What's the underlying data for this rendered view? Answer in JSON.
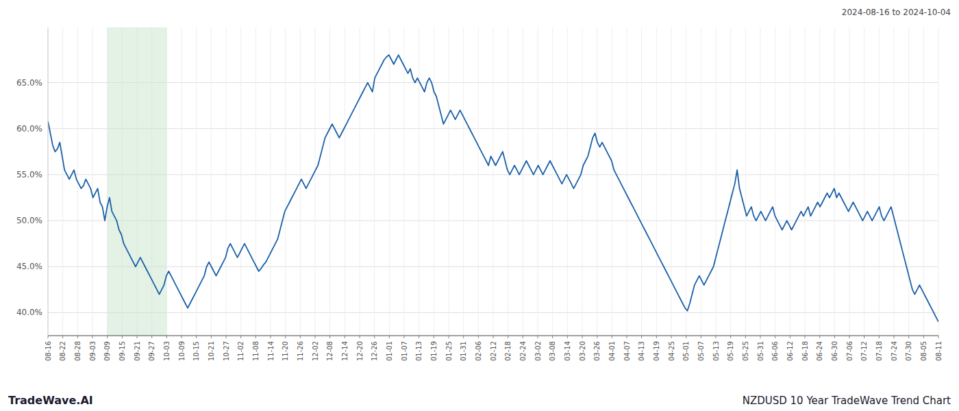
{
  "chart_data": {
    "type": "line",
    "title": "NZDUSD 10 Year TradeWave Trend Chart",
    "subtitle": "2024-08-16 to 2024-10-04",
    "annotations": [
      "TradeWave.AI"
    ],
    "color": "#1a5fa8",
    "grid": true,
    "shade": {
      "start": "09-09",
      "end": "10-03",
      "color": "#c8e6c9"
    },
    "ylim": [
      37.5,
      71.0
    ],
    "yticks": [
      {
        "value": 40.0,
        "label": "40.0%"
      },
      {
        "value": 45.0,
        "label": "45.0%"
      },
      {
        "value": 50.0,
        "label": "50.0%"
      },
      {
        "value": 55.0,
        "label": "55.0%"
      },
      {
        "value": 60.0,
        "label": "60.0%"
      },
      {
        "value": 65.0,
        "label": "65.0%"
      }
    ],
    "xlim": [
      0,
      376
    ],
    "xticks": [
      {
        "value": 0,
        "label": "08-16"
      },
      {
        "value": 6.266666666666667,
        "label": "08-22"
      },
      {
        "value": 12.533333333333333,
        "label": "08-28"
      },
      {
        "value": 18.8,
        "label": "09-03"
      },
      {
        "value": 25.066666666666666,
        "label": "09-09"
      },
      {
        "value": 31.333333333333332,
        "label": "09-15"
      },
      {
        "value": 37.6,
        "label": "09-21"
      },
      {
        "value": 43.86666666666667,
        "label": "09-27"
      },
      {
        "value": 50.13333333333333,
        "label": "10-03"
      },
      {
        "value": 56.4,
        "label": "10-09"
      },
      {
        "value": 62.666666666666664,
        "label": "10-15"
      },
      {
        "value": 68.93333333333334,
        "label": "10-21"
      },
      {
        "value": 75.2,
        "label": "10-27"
      },
      {
        "value": 81.46666666666667,
        "label": "11-02"
      },
      {
        "value": 87.73333333333333,
        "label": "11-08"
      },
      {
        "value": 94,
        "label": "11-14"
      },
      {
        "value": 100.26666666666667,
        "label": "11-20"
      },
      {
        "value": 106.53333333333333,
        "label": "11-26"
      },
      {
        "value": 112.8,
        "label": "12-02"
      },
      {
        "value": 119.06666666666666,
        "label": "12-08"
      },
      {
        "value": 125.33333333333333,
        "label": "12-14"
      },
      {
        "value": 131.6,
        "label": "12-20"
      },
      {
        "value": 137.86666666666667,
        "label": "12-26"
      },
      {
        "value": 144.13333333333333,
        "label": "01-01"
      },
      {
        "value": 150.4,
        "label": "01-07"
      },
      {
        "value": 156.66666666666666,
        "label": "01-13"
      },
      {
        "value": 162.93333333333334,
        "label": "01-19"
      },
      {
        "value": 169.2,
        "label": "01-25"
      },
      {
        "value": 175.46666666666667,
        "label": "01-31"
      },
      {
        "value": 181.73333333333332,
        "label": "02-06"
      },
      {
        "value": 188,
        "label": "02-12"
      },
      {
        "value": 194.26666666666668,
        "label": "02-18"
      },
      {
        "value": 200.53333333333333,
        "label": "02-24"
      },
      {
        "value": 206.8,
        "label": "03-02"
      },
      {
        "value": 213.06666666666666,
        "label": "03-08"
      },
      {
        "value": 219.33333333333334,
        "label": "03-14"
      },
      {
        "value": 225.6,
        "label": "03-20"
      },
      {
        "value": 231.86666666666667,
        "label": "03-26"
      },
      {
        "value": 238.13333333333333,
        "label": "04-01"
      },
      {
        "value": 244.4,
        "label": "04-07"
      },
      {
        "value": 250.66666666666666,
        "label": "04-13"
      },
      {
        "value": 256.93333333333334,
        "label": "04-19"
      },
      {
        "value": 263.2,
        "label": "04-25"
      },
      {
        "value": 269.46666666666664,
        "label": "05-01"
      },
      {
        "value": 275.73333333333335,
        "label": "05-07"
      },
      {
        "value": 282,
        "label": "05-13"
      },
      {
        "value": 288.26666666666665,
        "label": "05-19"
      },
      {
        "value": 294.53333333333336,
        "label": "05-25"
      },
      {
        "value": 300.8,
        "label": "05-31"
      },
      {
        "value": 307.06666666666666,
        "label": "06-06"
      },
      {
        "value": 313.3333333333333,
        "label": "06-12"
      },
      {
        "value": 319.6,
        "label": "06-18"
      },
      {
        "value": 325.8666666666667,
        "label": "06-24"
      },
      {
        "value": 332.1333333333333,
        "label": "06-30"
      },
      {
        "value": 338.4,
        "label": "07-06"
      },
      {
        "value": 344.6666666666667,
        "label": "07-12"
      },
      {
        "value": 350.93333333333334,
        "label": "07-18"
      },
      {
        "value": 357.2,
        "label": "07-24"
      },
      {
        "value": 363.46666666666664,
        "label": "07-30"
      },
      {
        "value": 369.73333333333335,
        "label": "08-05"
      },
      {
        "value": 376,
        "label": "08-11"
      }
    ],
    "values": [
      60.8,
      59.5,
      58.2,
      57.5,
      57.8,
      58.5,
      57.0,
      55.5,
      55.0,
      54.5,
      55.0,
      55.5,
      54.5,
      54.0,
      53.5,
      53.8,
      54.5,
      54.0,
      53.5,
      52.5,
      53.0,
      53.5,
      52.0,
      51.5,
      50.0,
      51.5,
      52.5,
      51.0,
      50.5,
      50.0,
      49.0,
      48.5,
      47.5,
      47.0,
      46.5,
      46.0,
      45.5,
      45.0,
      45.5,
      46.0,
      45.5,
      45.0,
      44.5,
      44.0,
      43.5,
      43.0,
      42.5,
      42.0,
      42.5,
      43.0,
      44.0,
      44.5,
      44.0,
      43.5,
      43.0,
      42.5,
      42.0,
      41.5,
      41.0,
      40.5,
      41.0,
      41.5,
      42.0,
      42.5,
      43.0,
      43.5,
      44.0,
      45.0,
      45.5,
      45.0,
      44.5,
      44.0,
      44.5,
      45.0,
      45.5,
      46.0,
      47.0,
      47.5,
      47.0,
      46.5,
      46.0,
      46.5,
      47.0,
      47.5,
      47.0,
      46.5,
      46.0,
      45.5,
      45.0,
      44.5,
      44.8,
      45.2,
      45.5,
      46.0,
      46.5,
      47.0,
      47.5,
      48.0,
      49.0,
      50.0,
      51.0,
      51.5,
      52.0,
      52.5,
      53.0,
      53.5,
      54.0,
      54.5,
      54.0,
      53.5,
      54.0,
      54.5,
      55.0,
      55.5,
      56.0,
      57.0,
      58.0,
      59.0,
      59.5,
      60.0,
      60.5,
      60.0,
      59.5,
      59.0,
      59.5,
      60.0,
      60.5,
      61.0,
      61.5,
      62.0,
      62.5,
      63.0,
      63.5,
      64.0,
      64.5,
      65.0,
      64.5,
      64.0,
      65.5,
      66.0,
      66.5,
      67.0,
      67.5,
      67.8,
      68.0,
      67.5,
      67.0,
      67.5,
      68.0,
      67.5,
      67.0,
      66.5,
      66.0,
      66.5,
      65.5,
      65.0,
      65.5,
      65.0,
      64.5,
      64.0,
      65.0,
      65.5,
      65.0,
      64.0,
      63.5,
      62.5,
      61.5,
      60.5,
      61.0,
      61.5,
      62.0,
      61.5,
      61.0,
      61.5,
      62.0,
      61.5,
      61.0,
      60.5,
      60.0,
      59.5,
      59.0,
      58.5,
      58.0,
      57.5,
      57.0,
      56.5,
      56.0,
      57.0,
      56.5,
      56.0,
      56.5,
      57.0,
      57.5,
      56.5,
      55.5,
      55.0,
      55.5,
      56.0,
      55.5,
      55.0,
      55.5,
      56.0,
      56.5,
      56.0,
      55.5,
      55.0,
      55.5,
      56.0,
      55.5,
      55.0,
      55.5,
      56.0,
      56.5,
      56.0,
      55.5,
      55.0,
      54.5,
      54.0,
      54.5,
      55.0,
      54.5,
      54.0,
      53.5,
      54.0,
      54.5,
      55.0,
      56.0,
      56.5,
      57.0,
      58.0,
      59.0,
      59.5,
      58.5,
      58.0,
      58.5,
      58.0,
      57.5,
      57.0,
      56.5,
      55.5,
      55.0,
      54.5,
      54.0,
      53.5,
      53.0,
      52.5,
      52.0,
      51.5,
      51.0,
      50.5,
      50.0,
      49.5,
      49.0,
      48.5,
      48.0,
      47.5,
      47.0,
      46.5,
      46.0,
      45.5,
      45.0,
      44.5,
      44.0,
      43.5,
      43.0,
      42.5,
      42.0,
      41.5,
      41.0,
      40.5,
      40.2,
      41.0,
      42.0,
      43.0,
      43.5,
      44.0,
      43.5,
      43.0,
      43.5,
      44.0,
      44.5,
      45.0,
      46.0,
      47.0,
      48.0,
      49.0,
      50.0,
      51.0,
      52.0,
      53.0,
      54.0,
      55.5,
      53.5,
      52.5,
      51.5,
      50.5,
      51.0,
      51.5,
      50.5,
      50.0,
      50.5,
      51.0,
      50.5,
      50.0,
      50.5,
      51.0,
      51.5,
      50.5,
      50.0,
      49.5,
      49.0,
      49.5,
      50.0,
      49.5,
      49.0,
      49.5,
      50.0,
      50.5,
      51.0,
      50.5,
      51.0,
      51.5,
      50.5,
      51.0,
      51.5,
      52.0,
      51.5,
      52.0,
      52.5,
      53.0,
      52.5,
      53.0,
      53.5,
      52.5,
      53.0,
      52.5,
      52.0,
      51.5,
      51.0,
      51.5,
      52.0,
      51.5,
      51.0,
      50.5,
      50.0,
      50.5,
      51.0,
      50.5,
      50.0,
      50.5,
      51.0,
      51.5,
      50.5,
      50.0,
      50.5,
      51.0,
      51.5,
      50.5,
      49.5,
      48.5,
      47.5,
      46.5,
      45.5,
      44.5,
      43.5,
      42.5,
      42.0,
      42.5,
      43.0,
      42.5,
      42.0,
      41.5,
      41.0,
      40.5,
      40.0,
      39.5,
      39.0
    ]
  }
}
